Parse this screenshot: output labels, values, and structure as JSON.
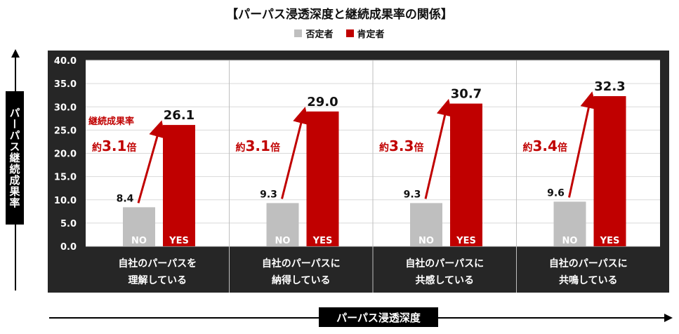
{
  "chart_data": {
    "type": "bar",
    "title": "【パーパス浸透深度と継続成果率の関係】",
    "ylabel": "パーパス継続成果率",
    "xlabel": "パーパス浸透深度",
    "ylim": [
      0,
      40
    ],
    "yticks": [
      "0.0",
      "5.0",
      "10.0",
      "15.0",
      "20.0",
      "25.0",
      "30.0",
      "35.0",
      "40.0"
    ],
    "grid": true,
    "legend_position": "top",
    "categories": [
      [
        "自社のパーパスを",
        "理解している"
      ],
      [
        "自社のパーパスに",
        "納得している"
      ],
      [
        "自社のパーパスに",
        "共感している"
      ],
      [
        "自社のパーパスに",
        "共鳴している"
      ]
    ],
    "series": [
      {
        "name": "否定者",
        "bar_label": "NO",
        "color": "#bfbfbf",
        "values": [
          8.4,
          9.3,
          9.3,
          9.6
        ]
      },
      {
        "name": "肯定者",
        "bar_label": "YES",
        "color": "#c00000",
        "values": [
          26.1,
          29.0,
          30.7,
          32.3
        ]
      }
    ],
    "value_labels": {
      "no": [
        "8.4",
        "9.3",
        "9.3",
        "9.6"
      ],
      "yes": [
        "26.1",
        "29.0",
        "30.7",
        "32.3"
      ]
    },
    "annotations": [
      {
        "caption": "継続成果率",
        "prefix": "約",
        "value": "3.1",
        "suffix": "倍"
      },
      {
        "caption": "",
        "prefix": "約",
        "value": "3.1",
        "suffix": "倍"
      },
      {
        "caption": "",
        "prefix": "約",
        "value": "3.3",
        "suffix": "倍"
      },
      {
        "caption": "",
        "prefix": "約",
        "value": "3.4",
        "suffix": "倍"
      }
    ]
  }
}
